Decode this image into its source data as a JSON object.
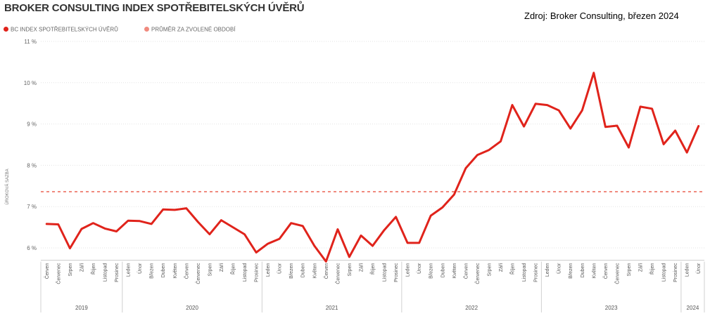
{
  "header": {
    "title": "BROKER CONSULTING INDEX SPOTŘEBITELSKÝCH ÚVĚRŮ",
    "source": "Zdroj: Broker Consulting, březen 2024"
  },
  "chart_data": {
    "type": "line",
    "title": "BROKER CONSULTING INDEX SPOTŘEBITELSKÝCH ÚVĚRŮ",
    "ylabel": "ÚROKOVÁ SAZBA",
    "xlabel": "",
    "ylim": [
      5.7,
      11
    ],
    "yticks": [
      6,
      7,
      8,
      9,
      10,
      11
    ],
    "ytick_labels": [
      "6 %",
      "7 %",
      "8 %",
      "9 %",
      "10 %",
      "11 %"
    ],
    "grid": true,
    "legend_position": "top-left",
    "months": [
      "Červen",
      "Červenec",
      "Srpen",
      "Září",
      "Říjen",
      "Listopad",
      "Prosinec",
      "Leden",
      "Únor",
      "Březen",
      "Duben",
      "Květen",
      "Červen",
      "Červenec",
      "Srpen",
      "Září",
      "Říjen",
      "Listopad",
      "Prosinec",
      "Leden",
      "Únor",
      "Březen",
      "Duben",
      "Květen",
      "Červen",
      "Červenec",
      "Srpen",
      "Září",
      "Říjen",
      "Listopad",
      "Prosinec",
      "Leden",
      "Únor",
      "Březen",
      "Duben",
      "Květen",
      "Červen",
      "Červenec",
      "Srpen",
      "Září",
      "Říjen",
      "Listopad",
      "Prosinec",
      "Leden",
      "Únor",
      "Březen",
      "Duben",
      "Květen",
      "Červen",
      "Červenec",
      "Srpen",
      "Září",
      "Říjen",
      "Listopad",
      "Prosinec",
      "Leden",
      "Únor"
    ],
    "years": [
      {
        "label": "2019",
        "start": 0,
        "end": 6
      },
      {
        "label": "2020",
        "start": 7,
        "end": 18
      },
      {
        "label": "2021",
        "start": 19,
        "end": 30
      },
      {
        "label": "2022",
        "start": 31,
        "end": 42
      },
      {
        "label": "2023",
        "start": 43,
        "end": 54
      },
      {
        "label": "2024",
        "start": 55,
        "end": 56
      }
    ],
    "series": [
      {
        "name": "BC INDEX SPOTŘEBITELSKÝCH ÚVĚRŮ",
        "color": "#e0231b",
        "values": [
          6.58,
          6.57,
          5.99,
          6.46,
          6.6,
          6.47,
          6.4,
          6.66,
          6.65,
          6.58,
          6.93,
          6.92,
          6.96,
          6.63,
          6.33,
          6.67,
          6.5,
          6.33,
          5.89,
          6.1,
          6.22,
          6.6,
          6.53,
          6.05,
          5.67,
          6.45,
          5.78,
          6.3,
          6.05,
          6.43,
          6.75,
          6.12,
          6.12,
          6.78,
          6.98,
          7.29,
          7.93,
          8.25,
          8.37,
          8.58,
          9.46,
          8.94,
          9.49,
          9.46,
          9.33,
          8.89,
          9.33,
          10.24,
          8.93,
          8.96,
          8.43,
          9.42,
          9.37,
          8.51,
          8.84,
          8.31,
          8.95
        ]
      },
      {
        "name": "PRŮMĚR ZA ZVOLENÉ OBDOBÍ",
        "color": "#f08a7e",
        "values": [
          7.36
        ]
      }
    ]
  }
}
